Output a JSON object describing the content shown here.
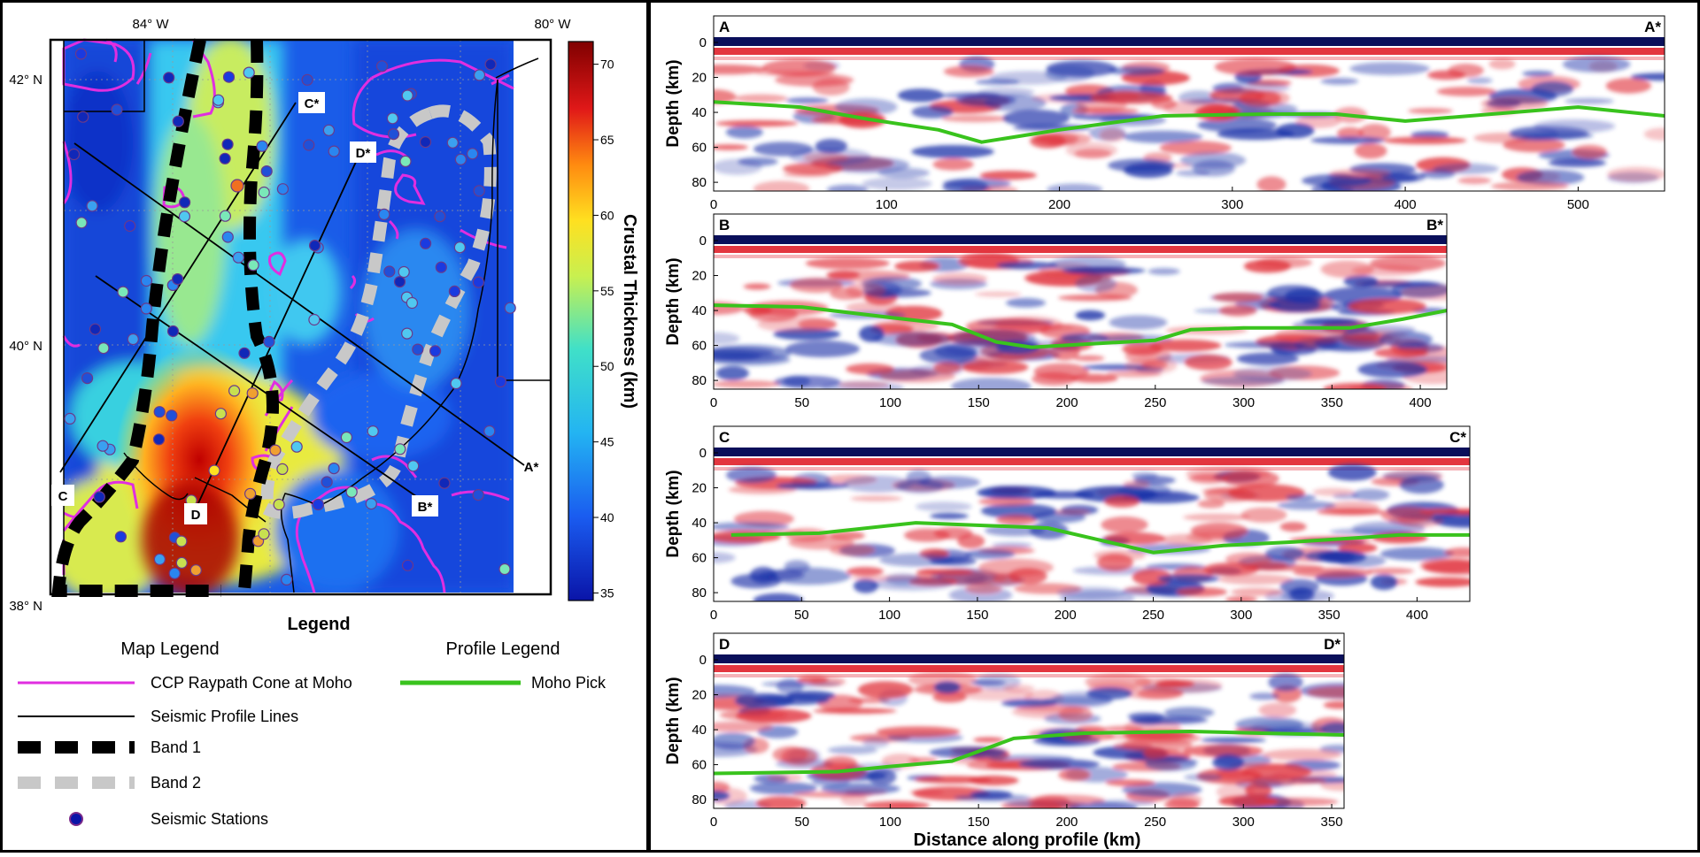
{
  "colors": {
    "moho_pick": "#39c31d",
    "raypath_cone": "#e02ee0",
    "band1": "#000000",
    "band2": "#c8c8c8",
    "profile_line": "#000000",
    "seismic_red": "#e0202a",
    "seismic_blue": "#0a1a8c"
  },
  "map": {
    "lon_labels": [
      "84° W",
      "80° W"
    ],
    "lat_labels": [
      "42° N",
      "40° N",
      "38° N"
    ],
    "profile_labels": [
      "A*",
      "B*",
      "C*",
      "D*",
      "C",
      "D"
    ],
    "colorbar_title": "Crustal Thickness (km)",
    "colorbar_ticks": [
      "70",
      "65",
      "60",
      "55",
      "50",
      "45",
      "40",
      "35"
    ],
    "colorbar_range": [
      34.5,
      71.5
    ]
  },
  "legend": {
    "title": "Legend",
    "map_title": "Map Legend",
    "profile_title": "Profile Legend",
    "items": {
      "ccp": "CCP Raypath Cone at Moho",
      "profile_lines": "Seismic Profile Lines",
      "band1": "Band 1",
      "band2": "Band 2",
      "stations": "Seismic Stations",
      "moho": "Moho Pick"
    }
  },
  "profiles": {
    "ylabel": "Depth (km)",
    "xlabel": "Distance along profile (km)",
    "y_ticks": [
      "0",
      "20",
      "40",
      "60",
      "80"
    ],
    "items": [
      {
        "start_label": "A",
        "end_label": "A*",
        "x_ticks": [
          "0",
          "100",
          "200",
          "300",
          "400",
          "500"
        ],
        "xrange": [
          0,
          550
        ],
        "moho": [
          [
            0,
            34
          ],
          [
            50,
            37
          ],
          [
            90,
            44
          ],
          [
            130,
            50
          ],
          [
            155,
            57
          ],
          [
            200,
            50
          ],
          [
            260,
            42
          ],
          [
            320,
            41
          ],
          [
            360,
            41
          ],
          [
            400,
            45
          ],
          [
            450,
            41
          ],
          [
            500,
            37
          ],
          [
            550,
            42
          ]
        ]
      },
      {
        "start_label": "B",
        "end_label": "B*",
        "x_ticks": [
          "0",
          "50",
          "100",
          "150",
          "200",
          "250",
          "300",
          "350",
          "400"
        ],
        "xrange": [
          0,
          415
        ],
        "moho": [
          [
            0,
            37
          ],
          [
            50,
            38
          ],
          [
            100,
            44
          ],
          [
            135,
            48
          ],
          [
            160,
            58
          ],
          [
            180,
            61
          ],
          [
            250,
            57
          ],
          [
            270,
            51
          ],
          [
            300,
            50
          ],
          [
            360,
            50
          ],
          [
            390,
            45
          ],
          [
            415,
            40
          ]
        ]
      },
      {
        "start_label": "C",
        "end_label": "C*",
        "x_ticks": [
          "0",
          "50",
          "100",
          "150",
          "200",
          "250",
          "300",
          "350",
          "400"
        ],
        "xrange": [
          0,
          430
        ],
        "moho": [
          [
            10,
            47
          ],
          [
            60,
            46
          ],
          [
            115,
            40
          ],
          [
            190,
            43
          ],
          [
            220,
            50
          ],
          [
            250,
            57
          ],
          [
            290,
            53
          ],
          [
            330,
            51
          ],
          [
            390,
            47
          ],
          [
            430,
            47
          ]
        ]
      },
      {
        "start_label": "D",
        "end_label": "D*",
        "x_ticks": [
          "0",
          "50",
          "100",
          "150",
          "200",
          "250",
          "300",
          "350"
        ],
        "xrange": [
          0,
          357
        ],
        "moho": [
          [
            0,
            65
          ],
          [
            70,
            64
          ],
          [
            100,
            61
          ],
          [
            135,
            58
          ],
          [
            170,
            45
          ],
          [
            210,
            42
          ],
          [
            270,
            41
          ],
          [
            310,
            42
          ],
          [
            357,
            43
          ]
        ]
      }
    ]
  }
}
